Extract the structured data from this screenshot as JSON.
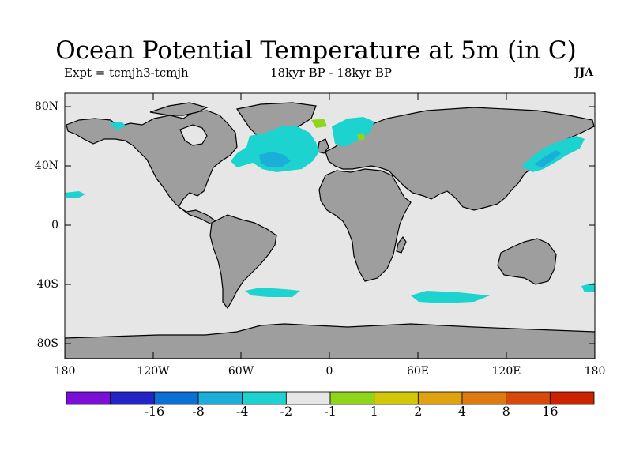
{
  "title": "Ocean Potential Temperature at 5m (in C)",
  "expt_label": "Expt = tcmjh3-tcmjh",
  "period_label": "18kyr BP - 18kyr BP",
  "season_label": "JJA",
  "lat_labels": [
    "80N",
    "40N",
    "0",
    "40S",
    "80S"
  ],
  "lon_labels": [
    "180",
    "120W",
    "60W",
    "0",
    "60E",
    "120E",
    "180"
  ],
  "colorbar": {
    "colors": [
      "#7a0fd8",
      "#2323c8",
      "#0b6fd6",
      "#1aaed8",
      "#1dd3cf",
      "#e6e6e6",
      "#8fd61a",
      "#d2c80a",
      "#e0a20f",
      "#dd7a10",
      "#d8490c",
      "#cc2200"
    ],
    "labels": [
      "-16",
      "-8",
      "-4",
      "-2",
      "-1",
      "1",
      "2",
      "4",
      "8",
      "16"
    ]
  },
  "map_colors": {
    "ocean": "#e6e6e6",
    "land": "#9e9e9e",
    "coast": "#000000"
  }
}
